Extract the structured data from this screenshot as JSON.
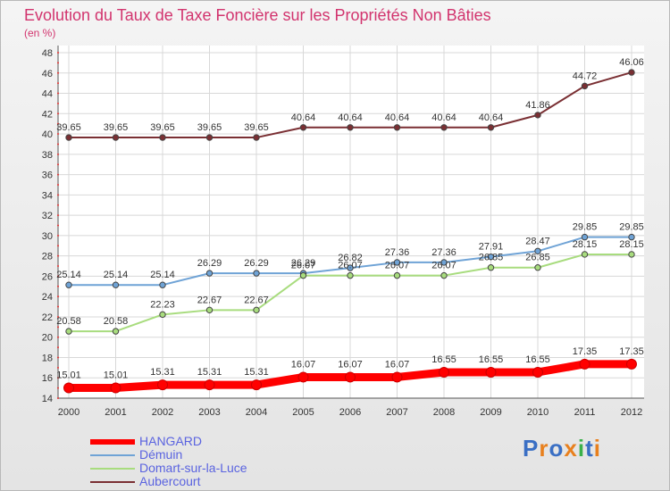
{
  "header": {
    "title": "Evolution du Taux de Taxe Foncière sur les Propriétés Non Bâties",
    "unit": "(en %)"
  },
  "chart_data": {
    "type": "line",
    "title": "Evolution du Taux de Taxe Foncière sur les Propriétés Non Bâties",
    "ylabel": "(en %)",
    "xlabel": "",
    "x": [
      "2000",
      "2001",
      "2002",
      "2003",
      "2004",
      "2005",
      "2006",
      "2007",
      "2008",
      "2009",
      "2010",
      "2011",
      "2012"
    ],
    "ylim": [
      14,
      48
    ],
    "yticks": [
      14,
      16,
      18,
      20,
      22,
      24,
      26,
      28,
      30,
      32,
      34,
      36,
      38,
      40,
      42,
      44,
      46,
      48
    ],
    "grid": true,
    "series": [
      {
        "name": "HANGARD",
        "color": "#ff0000",
        "values": [
          15.01,
          15.01,
          15.31,
          15.31,
          15.31,
          16.07,
          16.07,
          16.07,
          16.55,
          16.55,
          16.55,
          17.35,
          17.35
        ],
        "labels": [
          "15.01",
          "15.01",
          "15.31",
          "15.31",
          "15.31",
          "16.07",
          "16.07",
          "16.07",
          "16.55",
          "16.55",
          "16.55",
          "17.35",
          "17.35"
        ]
      },
      {
        "name": "Démuin",
        "color": "#6fa3d6",
        "values": [
          25.14,
          25.14,
          25.14,
          26.29,
          26.29,
          26.29,
          26.82,
          27.36,
          27.36,
          27.91,
          28.47,
          29.85,
          29.85
        ],
        "labels": [
          "25.14",
          "25.14",
          "25.14",
          "26.29",
          "26.29",
          "26.29",
          "26.82",
          "27.36",
          "27.36",
          "27.91",
          "28.47",
          "29.85",
          "29.85"
        ]
      },
      {
        "name": "Domart-sur-la-Luce",
        "color": "#a8dc7e",
        "values": [
          20.58,
          20.58,
          22.23,
          22.67,
          22.67,
          26.07,
          26.07,
          26.07,
          26.07,
          26.85,
          26.85,
          28.15,
          28.15
        ],
        "labels": [
          "20.58",
          "20.58",
          "22.23",
          "22.67",
          "22.67",
          "26.07",
          "26.07",
          "26.07",
          "26.07",
          "26.85",
          "26.85",
          "28.15",
          "28.15"
        ]
      },
      {
        "name": "Aubercourt",
        "color": "#7a2f33",
        "values": [
          39.65,
          39.65,
          39.65,
          39.65,
          39.65,
          40.64,
          40.64,
          40.64,
          40.64,
          40.64,
          41.86,
          44.72,
          46.06
        ],
        "labels": [
          "39.65",
          "39.65",
          "39.65",
          "39.65",
          "39.65",
          "40.64",
          "40.64",
          "40.64",
          "40.64",
          "40.64",
          "41.86",
          "44.72",
          "46.06"
        ]
      }
    ],
    "legend": "bottom-left"
  },
  "brand": {
    "letters": [
      "P",
      "r",
      "o",
      "x",
      "i",
      "t",
      "i"
    ],
    "colors": [
      "#3a6fc4",
      "#e8801e",
      "#3a6fc4",
      "#e8801e",
      "#3ab14a",
      "#3a6fc4",
      "#e8801e"
    ]
  }
}
